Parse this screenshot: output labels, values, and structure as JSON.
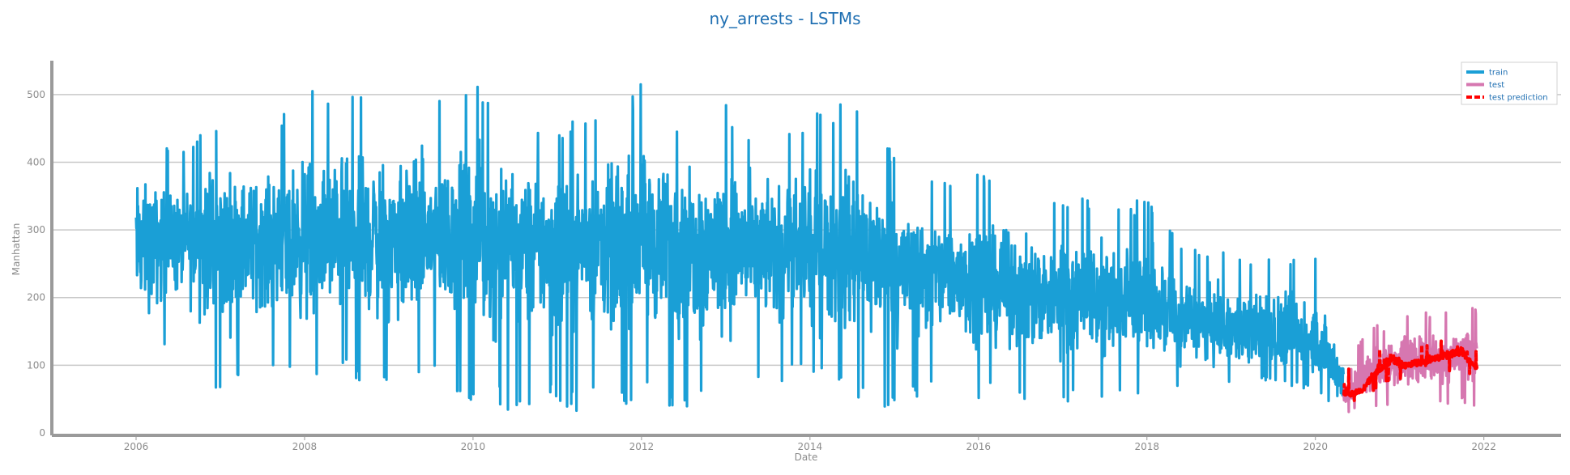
{
  "chart_data": {
    "type": "line",
    "title": "ny_arrests - LSTMs",
    "xlabel": "Date",
    "ylabel": "Manhattan",
    "x_ticks": [
      "2006",
      "2008",
      "2010",
      "2012",
      "2014",
      "2016",
      "2018",
      "2020",
      "2022"
    ],
    "y_ticks": [
      "0",
      "100",
      "200",
      "300",
      "400",
      "500"
    ],
    "xlim": [
      "2005-01",
      "2022-12"
    ],
    "ylim": [
      0,
      550
    ],
    "grid": "horizontal",
    "legend_position": "top-right",
    "series": [
      {
        "name": "train",
        "color": "#1a9fd6",
        "style": "solid",
        "x": [
          "2006-01",
          "2006-07",
          "2007-01",
          "2007-07",
          "2008-01",
          "2008-07",
          "2009-01",
          "2009-07",
          "2010-01",
          "2010-07",
          "2011-01",
          "2011-07",
          "2012-01",
          "2012-07",
          "2013-01",
          "2013-07",
          "2014-01",
          "2014-07",
          "2015-01",
          "2015-07",
          "2016-01",
          "2016-07",
          "2017-01",
          "2017-07",
          "2018-01",
          "2018-07",
          "2019-01",
          "2019-07",
          "2020-01",
          "2020-05"
        ],
        "mean": [
          285,
          285,
          290,
          290,
          290,
          290,
          295,
          290,
          290,
          290,
          285,
          285,
          285,
          280,
          280,
          275,
          275,
          270,
          250,
          240,
          230,
          215,
          205,
          195,
          185,
          165,
          150,
          140,
          130,
          75
        ],
        "upper": [
          445,
          415,
          465,
          440,
          505,
          515,
          500,
          505,
          525,
          465,
          460,
          465,
          520,
          450,
          485,
          435,
          470,
          505,
          410,
          375,
          395,
          340,
          350,
          345,
          345,
          275,
          265,
          260,
          265,
          165
        ],
        "lower": [
          65,
          130,
          35,
          95,
          55,
          80,
          45,
          95,
          40,
          30,
          35,
          30,
          40,
          35,
          30,
          80,
          70,
          55,
          25,
          60,
          50,
          45,
          45,
          50,
          60,
          65,
          70,
          75,
          60,
          25
        ]
      },
      {
        "name": "test",
        "color": "#d677b0",
        "style": "solid",
        "x": [
          "2020-05",
          "2020-07",
          "2020-10",
          "2021-01",
          "2021-04",
          "2021-07",
          "2021-10",
          "2021-12"
        ],
        "mean": [
          55,
          65,
          100,
          105,
          110,
          110,
          115,
          120
        ],
        "upper": [
          110,
          130,
          170,
          175,
          180,
          175,
          190,
          185
        ],
        "lower": [
          25,
          35,
          40,
          35,
          45,
          40,
          45,
          35
        ]
      },
      {
        "name": "test prediction",
        "color": "#ff0000",
        "style": "dashed",
        "x": [
          "2020-05",
          "2020-06",
          "2020-08",
          "2020-10",
          "2020-12",
          "2021-02",
          "2021-04",
          "2021-06",
          "2021-08",
          "2021-10",
          "2021-12"
        ],
        "mean": [
          60,
          55,
          65,
          95,
          110,
          100,
          105,
          110,
          115,
          120,
          95
        ],
        "upper": [
          155,
          75,
          90,
          125,
          140,
          120,
          130,
          135,
          145,
          150,
          120
        ],
        "lower": [
          40,
          45,
          50,
          70,
          80,
          75,
          80,
          85,
          90,
          95,
          80
        ]
      }
    ]
  }
}
